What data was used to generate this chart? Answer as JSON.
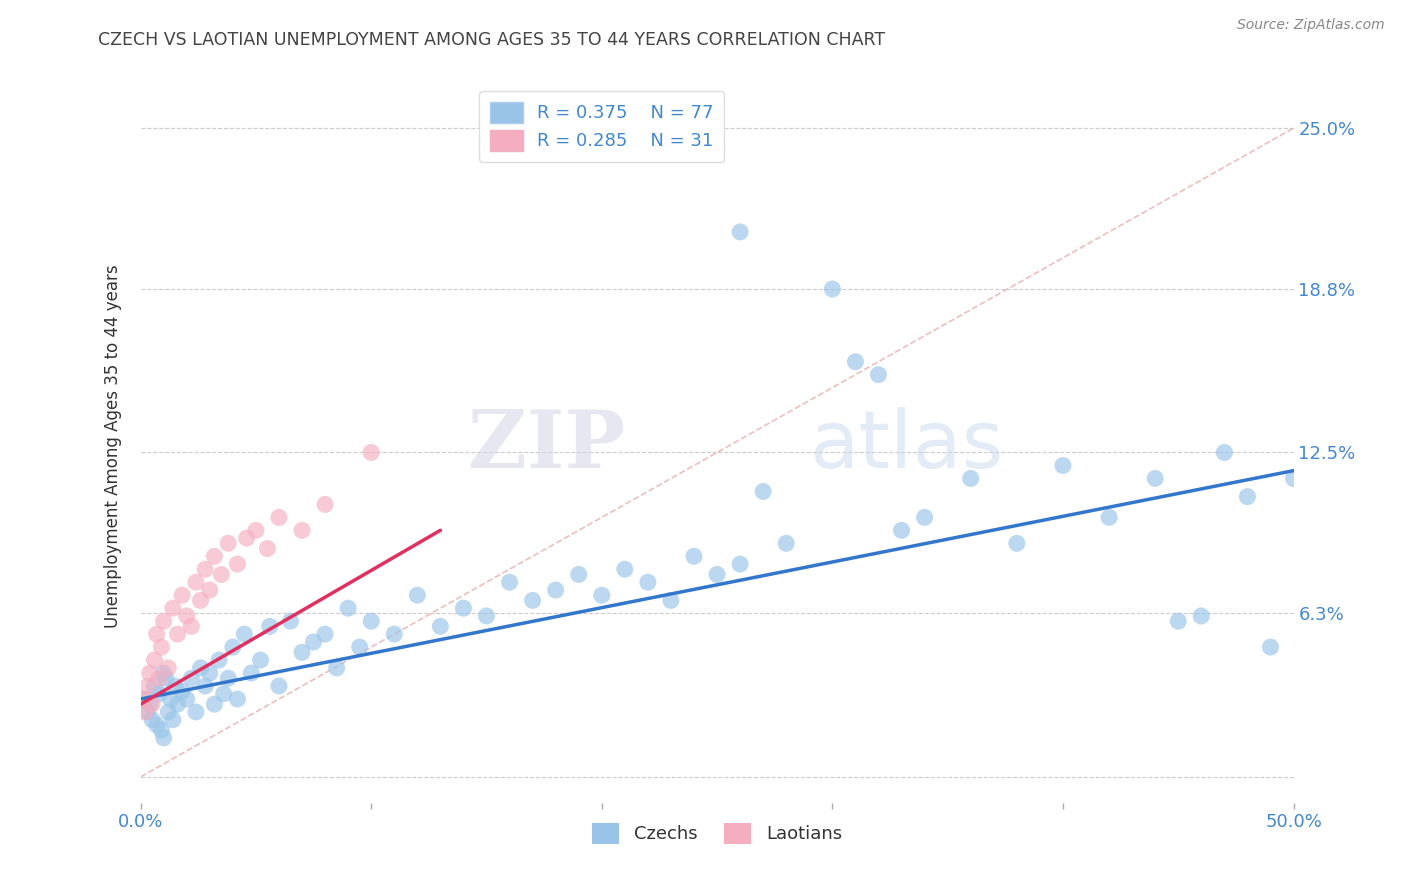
{
  "title": "CZECH VS LAOTIAN UNEMPLOYMENT AMONG AGES 35 TO 44 YEARS CORRELATION CHART",
  "source": "Source: ZipAtlas.com",
  "ylabel": "Unemployment Among Ages 35 to 44 years",
  "xlim": [
    0.0,
    0.5
  ],
  "ylim": [
    -0.01,
    0.265
  ],
  "ytick_positions": [
    0.0,
    0.063,
    0.125,
    0.188,
    0.25
  ],
  "ytick_labels": [
    "",
    "6.3%",
    "12.5%",
    "18.8%",
    "25.0%"
  ],
  "grid_color": "#cccccc",
  "background_color": "#ffffff",
  "title_color": "#444444",
  "source_color": "#888888",
  "czech_color": "#99c4e8",
  "laotian_color": "#f5aec0",
  "czech_line_color": "#3377cc",
  "laotian_line_color": "#e03060",
  "diagonal_color": "#e8b8b8",
  "R_czech": 0.375,
  "N_czech": 77,
  "R_laotian": 0.285,
  "N_laotian": 31,
  "legend_czech_label": "Czechs",
  "legend_laotian_label": "Laotians",
  "watermark_zip": "ZIP",
  "watermark_atlas": "atlas",
  "czech_x": [
    0.002,
    0.003,
    0.004,
    0.005,
    0.006,
    0.007,
    0.008,
    0.009,
    0.01,
    0.01,
    0.011,
    0.012,
    0.013,
    0.014,
    0.015,
    0.016,
    0.018,
    0.02,
    0.022,
    0.024,
    0.026,
    0.028,
    0.03,
    0.032,
    0.034,
    0.036,
    0.038,
    0.04,
    0.042,
    0.045,
    0.048,
    0.052,
    0.056,
    0.06,
    0.065,
    0.07,
    0.075,
    0.08,
    0.085,
    0.09,
    0.095,
    0.1,
    0.11,
    0.12,
    0.13,
    0.14,
    0.15,
    0.16,
    0.17,
    0.18,
    0.19,
    0.2,
    0.21,
    0.22,
    0.23,
    0.24,
    0.25,
    0.26,
    0.27,
    0.28,
    0.3,
    0.31,
    0.32,
    0.33,
    0.34,
    0.36,
    0.38,
    0.4,
    0.42,
    0.44,
    0.45,
    0.46,
    0.47,
    0.48,
    0.49,
    0.5,
    0.26
  ],
  "czech_y": [
    0.03,
    0.025,
    0.028,
    0.022,
    0.035,
    0.02,
    0.032,
    0.018,
    0.04,
    0.015,
    0.038,
    0.025,
    0.03,
    0.022,
    0.035,
    0.028,
    0.033,
    0.03,
    0.038,
    0.025,
    0.042,
    0.035,
    0.04,
    0.028,
    0.045,
    0.032,
    0.038,
    0.05,
    0.03,
    0.055,
    0.04,
    0.045,
    0.058,
    0.035,
    0.06,
    0.048,
    0.052,
    0.055,
    0.042,
    0.065,
    0.05,
    0.06,
    0.055,
    0.07,
    0.058,
    0.065,
    0.062,
    0.075,
    0.068,
    0.072,
    0.078,
    0.07,
    0.08,
    0.075,
    0.068,
    0.085,
    0.078,
    0.082,
    0.11,
    0.09,
    0.188,
    0.16,
    0.155,
    0.095,
    0.1,
    0.115,
    0.09,
    0.12,
    0.1,
    0.115,
    0.06,
    0.062,
    0.125,
    0.108,
    0.05,
    0.115,
    0.21
  ],
  "laotian_x": [
    0.001,
    0.002,
    0.003,
    0.004,
    0.005,
    0.006,
    0.007,
    0.008,
    0.009,
    0.01,
    0.012,
    0.014,
    0.016,
    0.018,
    0.02,
    0.022,
    0.024,
    0.026,
    0.028,
    0.03,
    0.032,
    0.035,
    0.038,
    0.042,
    0.046,
    0.05,
    0.055,
    0.06,
    0.07,
    0.08,
    0.1
  ],
  "laotian_y": [
    0.03,
    0.025,
    0.035,
    0.04,
    0.028,
    0.045,
    0.055,
    0.038,
    0.05,
    0.06,
    0.042,
    0.065,
    0.055,
    0.07,
    0.062,
    0.058,
    0.075,
    0.068,
    0.08,
    0.072,
    0.085,
    0.078,
    0.09,
    0.082,
    0.092,
    0.095,
    0.088,
    0.1,
    0.095,
    0.105,
    0.125
  ],
  "czech_trend_x0": 0.0,
  "czech_trend_y0": 0.03,
  "czech_trend_x1": 0.5,
  "czech_trend_y1": 0.118,
  "laotian_trend_x0": 0.0,
  "laotian_trend_y0": 0.028,
  "laotian_trend_x1": 0.13,
  "laotian_trend_y1": 0.095
}
